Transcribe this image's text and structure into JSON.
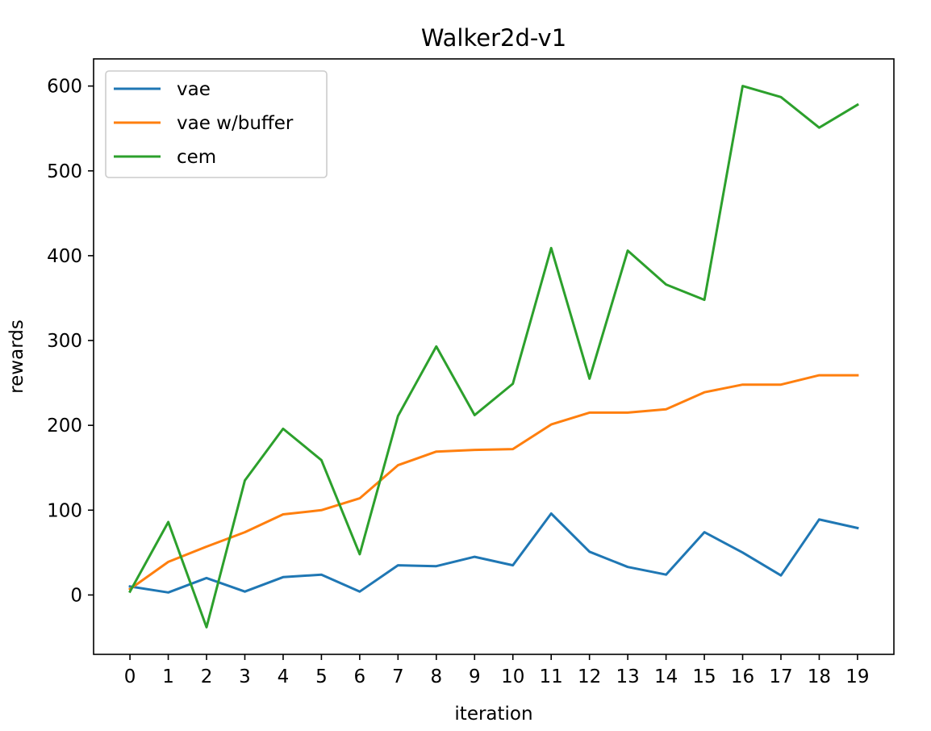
{
  "chart_data": {
    "type": "line",
    "title": "Walker2d-v1",
    "xlabel": "iteration",
    "ylabel": "rewards",
    "x": [
      0,
      1,
      2,
      3,
      4,
      5,
      6,
      7,
      8,
      9,
      10,
      11,
      12,
      13,
      14,
      15,
      16,
      17,
      18,
      19
    ],
    "xlim": [
      -0.95,
      19.95
    ],
    "ylim": [
      -70,
      632
    ],
    "xticks": [
      0,
      1,
      2,
      3,
      4,
      5,
      6,
      7,
      8,
      9,
      10,
      11,
      12,
      13,
      14,
      15,
      16,
      17,
      18,
      19
    ],
    "yticks": [
      0,
      100,
      200,
      300,
      400,
      500,
      600
    ],
    "grid": false,
    "legend_position": "top-left",
    "series": [
      {
        "name": "vae",
        "color": "#1f77b4",
        "values": [
          10,
          3,
          20,
          4,
          21,
          24,
          4,
          35,
          34,
          45,
          35,
          96,
          51,
          33,
          24,
          74,
          50,
          23,
          89,
          79
        ]
      },
      {
        "name": "vae w/buffer",
        "color": "#ff7f0e",
        "values": [
          7,
          39,
          57,
          74,
          95,
          100,
          114,
          153,
          169,
          171,
          172,
          201,
          215,
          215,
          219,
          239,
          248,
          248,
          259,
          259
        ]
      },
      {
        "name": "cem",
        "color": "#2ca02c",
        "values": [
          4,
          86,
          -38,
          135,
          196,
          159,
          48,
          211,
          293,
          212,
          249,
          409,
          255,
          406,
          366,
          348,
          600,
          587,
          551,
          578
        ]
      }
    ]
  }
}
